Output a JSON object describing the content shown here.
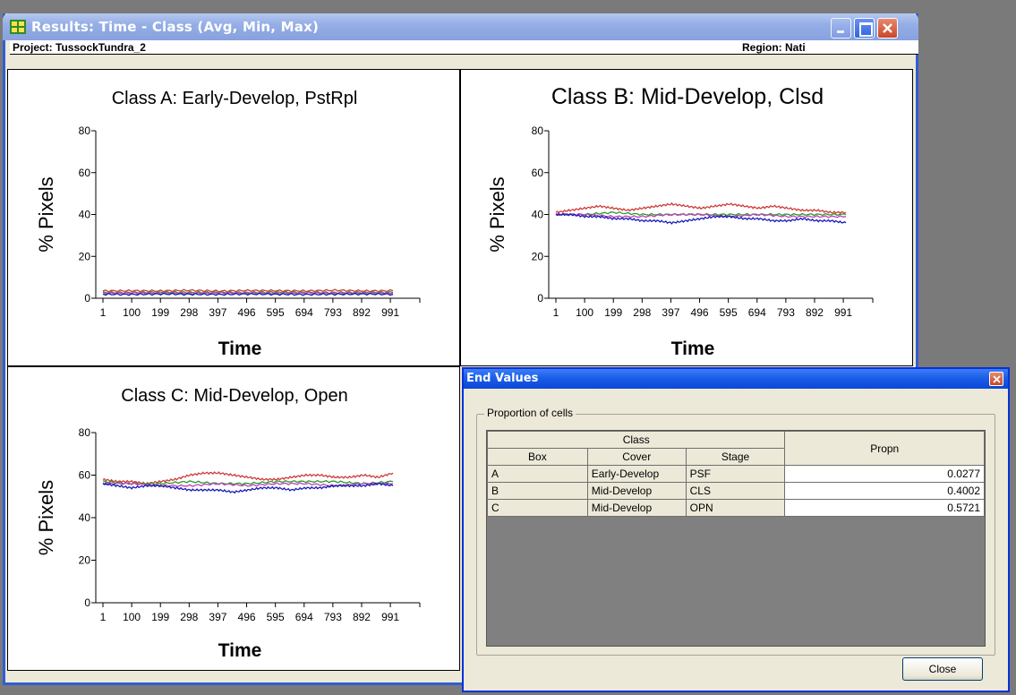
{
  "window": {
    "title": "Results: Time - Class (Avg, Min, Max)",
    "project_label": "Project: TussockTundra_2",
    "region_label": "Region: Nati"
  },
  "chart_data": [
    {
      "type": "line",
      "title": "Class A: Early-Develop, PstRpl",
      "xlabel": "Time",
      "ylabel": "% Pixels",
      "x_ticks": [
        "1",
        "100",
        "199",
        "298",
        "397",
        "496",
        "595",
        "694",
        "793",
        "892",
        "991"
      ],
      "y_ticks": [
        "0",
        "20",
        "40",
        "60",
        "80"
      ],
      "xlim": [
        1,
        1000
      ],
      "ylim": [
        0,
        80
      ],
      "series": [
        {
          "color": "#d03a3a",
          "x": [
            1,
            100,
            200,
            300,
            400,
            500,
            600,
            700,
            800,
            900,
            1000
          ],
          "values": [
            3.5,
            3.6,
            3.5,
            3.8,
            3.4,
            3.7,
            3.6,
            3.5,
            3.8,
            3.5,
            3.6
          ]
        },
        {
          "color": "#2a9a2a",
          "x": [
            1,
            100,
            200,
            300,
            400,
            500,
            600,
            700,
            800,
            900,
            1000
          ],
          "values": [
            2.8,
            2.7,
            2.9,
            2.8,
            2.8,
            2.7,
            2.9,
            2.8,
            2.7,
            2.8,
            2.8
          ]
        },
        {
          "color": "#c040c0",
          "x": [
            1,
            100,
            200,
            300,
            400,
            500,
            600,
            700,
            800,
            900,
            1000
          ],
          "values": [
            2.4,
            2.5,
            2.4,
            2.3,
            2.5,
            2.4,
            2.3,
            2.5,
            2.4,
            2.4,
            2.4
          ]
        },
        {
          "color": "#1a1ab8",
          "x": [
            1,
            100,
            200,
            300,
            400,
            500,
            600,
            700,
            800,
            900,
            1000
          ],
          "values": [
            1.9,
            1.8,
            2.0,
            1.9,
            1.8,
            2.0,
            1.9,
            1.8,
            1.9,
            2.0,
            1.9
          ]
        }
      ]
    },
    {
      "type": "line",
      "title": "Class B: Mid-Develop, Clsd",
      "xlabel": "Time",
      "ylabel": "% Pixels",
      "x_ticks": [
        "1",
        "100",
        "199",
        "298",
        "397",
        "496",
        "595",
        "694",
        "793",
        "892",
        "991"
      ],
      "y_ticks": [
        "0",
        "20",
        "40",
        "60",
        "80"
      ],
      "xlim": [
        1,
        1000
      ],
      "ylim": [
        0,
        80
      ],
      "series": [
        {
          "color": "#d03a3a",
          "x": [
            1,
            50,
            100,
            150,
            200,
            250,
            300,
            350,
            400,
            450,
            500,
            550,
            600,
            650,
            700,
            750,
            800,
            850,
            900,
            950,
            1000
          ],
          "values": [
            41,
            42,
            43,
            44,
            43,
            42,
            43,
            44,
            45,
            44,
            43,
            44,
            45,
            44,
            43,
            44,
            43,
            42,
            42,
            41,
            41
          ]
        },
        {
          "color": "#2a9a2a",
          "x": [
            1,
            100,
            200,
            300,
            400,
            500,
            600,
            700,
            800,
            900,
            1000
          ],
          "values": [
            40,
            40,
            41,
            40,
            40,
            40,
            40,
            40,
            40,
            40,
            40
          ]
        },
        {
          "color": "#c040c0",
          "x": [
            1,
            100,
            200,
            300,
            400,
            500,
            600,
            700,
            800,
            900,
            1000
          ],
          "values": [
            40,
            40,
            39,
            39,
            40,
            40,
            39,
            40,
            39,
            39,
            39
          ]
        },
        {
          "color": "#1a1ab8",
          "x": [
            1,
            50,
            100,
            150,
            200,
            250,
            300,
            350,
            400,
            450,
            500,
            550,
            600,
            650,
            700,
            750,
            800,
            850,
            900,
            950,
            1000
          ],
          "values": [
            40,
            40,
            39,
            39,
            38,
            38,
            37,
            37,
            36,
            37,
            38,
            39,
            39,
            38,
            38,
            37,
            37,
            38,
            37,
            37,
            36
          ]
        }
      ]
    },
    {
      "type": "line",
      "title": "Class C: Mid-Develop, Open",
      "xlabel": "Time",
      "ylabel": "% Pixels",
      "x_ticks": [
        "1",
        "100",
        "199",
        "298",
        "397",
        "496",
        "595",
        "694",
        "793",
        "892",
        "991"
      ],
      "y_ticks": [
        "0",
        "20",
        "40",
        "60",
        "80"
      ],
      "xlim": [
        1,
        1000
      ],
      "ylim": [
        0,
        80
      ],
      "series": [
        {
          "color": "#d03a3a",
          "x": [
            1,
            50,
            100,
            150,
            200,
            250,
            300,
            350,
            400,
            450,
            500,
            550,
            600,
            650,
            700,
            750,
            800,
            850,
            900,
            950,
            1000
          ],
          "values": [
            58,
            57,
            57,
            56,
            57,
            58,
            60,
            61,
            61,
            60,
            59,
            58,
            58,
            59,
            60,
            60,
            59,
            59,
            60,
            59,
            61
          ]
        },
        {
          "color": "#2a9a2a",
          "x": [
            1,
            100,
            200,
            300,
            400,
            500,
            600,
            700,
            800,
            900,
            1000
          ],
          "values": [
            57,
            56,
            56,
            57,
            56,
            56,
            57,
            57,
            57,
            56,
            57
          ]
        },
        {
          "color": "#c040c0",
          "x": [
            1,
            100,
            200,
            300,
            400,
            500,
            600,
            700,
            800,
            900,
            1000
          ],
          "values": [
            56,
            56,
            55,
            55,
            56,
            55,
            56,
            56,
            55,
            56,
            56
          ]
        },
        {
          "color": "#1a1ab8",
          "x": [
            1,
            50,
            100,
            150,
            200,
            250,
            300,
            350,
            400,
            450,
            500,
            550,
            600,
            650,
            700,
            750,
            800,
            850,
            900,
            950,
            1000
          ],
          "values": [
            56,
            55,
            54,
            55,
            55,
            54,
            53,
            53,
            53,
            52,
            53,
            54,
            54,
            53,
            54,
            54,
            55,
            55,
            55,
            56,
            55
          ]
        }
      ]
    }
  ],
  "dialog": {
    "title": "End Values",
    "group_label": "Proportion of cells",
    "headers": {
      "class": "Class",
      "box": "Box",
      "cover": "Cover",
      "stage": "Stage",
      "propn": "Propn"
    },
    "rows": [
      {
        "box": "A",
        "cover": "Early-Develop",
        "stage": "PSF",
        "propn": "0.0277"
      },
      {
        "box": "B",
        "cover": "Mid-Develop",
        "stage": "CLS",
        "propn": "0.4002"
      },
      {
        "box": "C",
        "cover": "Mid-Develop",
        "stage": "OPN",
        "propn": "0.5721"
      }
    ],
    "close_label": "Close"
  }
}
